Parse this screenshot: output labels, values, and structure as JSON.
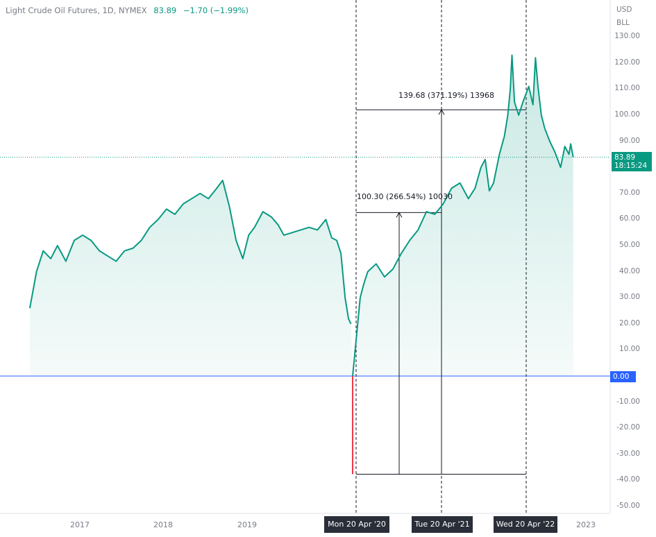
{
  "legend": {
    "symbol": "Light Crude Oil Futures, 1D, NYMEX",
    "last_price": "83.89",
    "change": "−1.70 (−1.99%)"
  },
  "price_axis": {
    "unit_line1": "USD",
    "unit_line2": "BLL",
    "ticks": [
      "130.00",
      "120.00",
      "110.00",
      "100.00",
      "90.00",
      "80.00",
      "70.00",
      "60.00",
      "50.00",
      "40.00",
      "30.00",
      "20.00",
      "10.00",
      "0.00",
      "-10.00",
      "-20.00",
      "-30.00",
      "-40.00",
      "-50.00"
    ],
    "last_price_badge": "83.89",
    "countdown": "18:15:24",
    "zero_badge": "0.00"
  },
  "time_axis": {
    "labels": [
      "2017",
      "2018",
      "2019",
      "2023"
    ],
    "crosshair_dates": [
      "Mon 20 Apr '20",
      "Tue 20 Apr '21",
      "Wed 20 Apr '22"
    ]
  },
  "measurements": [
    {
      "label": "100.30 (266.54%) 10030"
    },
    {
      "label": "139.68 (371.19%) 13968"
    }
  ],
  "chart_data": {
    "type": "area",
    "title": "Light Crude Oil Futures, 1D, NYMEX",
    "xlabel": "",
    "ylabel": "USD/BLL",
    "ylim": [
      -50,
      130
    ],
    "series": [
      {
        "x": [
          2016.42,
          2016.5,
          2016.58,
          2016.67,
          2016.75,
          2016.85,
          2016.95,
          2017.05,
          2017.15,
          2017.25,
          2017.35,
          2017.45,
          2017.55,
          2017.65,
          2017.75,
          2017.85,
          2017.95,
          2018.05,
          2018.15,
          2018.25,
          2018.35,
          2018.45,
          2018.55,
          2018.65,
          2018.72,
          2018.8,
          2018.88,
          2018.96,
          2019.03,
          2019.1,
          2019.2,
          2019.3,
          2019.38,
          2019.45,
          2019.55,
          2019.65,
          2019.75,
          2019.85,
          2019.95,
          2020.02,
          2020.08,
          2020.13,
          2020.18,
          2020.22,
          2020.25,
          2020.27,
          2020.3,
          2020.33,
          2020.36,
          2020.4,
          2020.45,
          2020.55,
          2020.65,
          2020.75,
          2020.85,
          2020.95,
          2021.05,
          2021.15,
          2021.25,
          2021.35,
          2021.45,
          2021.55,
          2021.65,
          2021.73,
          2021.8,
          2021.85,
          2021.9,
          2021.95,
          2022.02,
          2022.08,
          2022.12,
          2022.15,
          2022.17,
          2022.2,
          2022.25,
          2022.3,
          2022.37,
          2022.42,
          2022.45,
          2022.48,
          2022.52,
          2022.56,
          2022.62,
          2022.68,
          2022.75,
          2022.8,
          2022.85,
          2022.87,
          2022.9
        ],
        "values": [
          26,
          40,
          48,
          45,
          50,
          44,
          52,
          54,
          52,
          48,
          46,
          44,
          48,
          49,
          52,
          57,
          60,
          64,
          62,
          66,
          68,
          70,
          68,
          72,
          75,
          65,
          52,
          45,
          54,
          57,
          63,
          61,
          58,
          54,
          55,
          56,
          57,
          56,
          60,
          53,
          52,
          47,
          30,
          22,
          20,
          -37.6,
          10,
          20,
          30,
          35,
          40,
          43,
          38,
          41,
          47,
          52,
          56,
          63,
          62,
          66,
          72,
          74,
          68,
          72,
          80,
          83,
          71,
          74,
          85,
          92,
          100,
          110,
          123,
          105,
          100,
          105,
          111,
          104,
          122,
          111,
          100,
          95,
          90,
          86,
          80,
          88,
          85,
          89,
          83.89
        ]
      }
    ],
    "annotations": [
      {
        "type": "price_range",
        "from": -37.63,
        "to": 62.67,
        "change": "100.30 (266.54%) 10030"
      },
      {
        "type": "price_range",
        "from": -37.63,
        "to": 102.05,
        "change": "139.68 (371.19%) 13968"
      }
    ],
    "colors": {
      "line": "#089981",
      "baseline": "#2962ff",
      "drop": "#f23645"
    }
  }
}
